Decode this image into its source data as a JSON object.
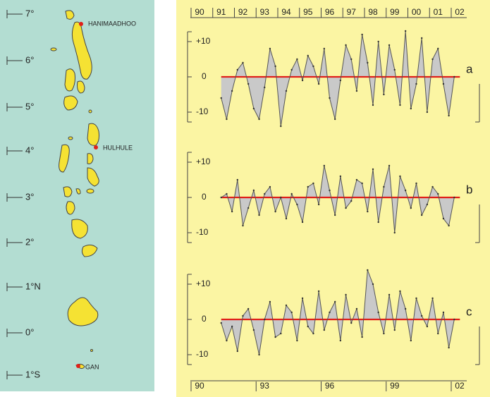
{
  "map": {
    "latitudes": [
      "7°",
      "6°",
      "5°",
      "4°",
      "3°",
      "2°",
      "1°N",
      "0°",
      "1°S"
    ],
    "stations": [
      "HANIMAADHOO",
      "HULHULE",
      "GAN"
    ]
  },
  "chart_data": [
    {
      "type": "line",
      "label": "a",
      "color": "#555555",
      "zero_color": "#e0201a",
      "fill": "#c9c9c9",
      "xlim": [
        1990,
        2002
      ],
      "ylim": [
        -14,
        14
      ],
      "yticks": [
        {
          "value": 10,
          "label": "+10"
        },
        0,
        -10
      ],
      "xticks": [
        {
          "value": 1990,
          "label": "90"
        },
        {
          "value": 1991,
          "label": "91"
        },
        {
          "value": 1992,
          "label": "92"
        },
        {
          "value": 1993,
          "label": "93"
        },
        {
          "value": 1994,
          "label": "94"
        },
        {
          "value": 1995,
          "label": "95"
        },
        {
          "value": 1996,
          "label": "96"
        },
        {
          "value": 1997,
          "label": "97"
        },
        {
          "value": 1998,
          "label": "98"
        },
        {
          "value": 1999,
          "label": "99"
        },
        {
          "value": 2000,
          "label": "00"
        },
        {
          "value": 2001,
          "label": "01"
        },
        {
          "value": 2002,
          "label": "02"
        }
      ],
      "x": [
        1991.0,
        1991.25,
        1991.5,
        1991.75,
        1992.0,
        1992.25,
        1992.5,
        1992.75,
        1993.0,
        1993.25,
        1993.5,
        1993.75,
        1994.0,
        1994.25,
        1994.5,
        1994.75,
        1995.0,
        1995.25,
        1995.5,
        1995.75,
        1996.0,
        1996.25,
        1996.5,
        1996.75,
        1997.0,
        1997.25,
        1997.5,
        1997.75,
        1998.0,
        1998.25,
        1998.5,
        1998.75,
        1999.0,
        1999.25,
        1999.5,
        1999.75,
        2000.0,
        2000.25,
        2000.5,
        2000.75,
        2001.0,
        2001.25,
        2001.5,
        2001.75
      ],
      "values": [
        -6,
        -12,
        -4,
        2,
        4,
        -2,
        -9,
        -12,
        -3,
        8,
        3,
        -14,
        -4,
        2,
        5,
        -1,
        6,
        3,
        -2,
        8,
        -6,
        -12,
        -1,
        9,
        5,
        -4,
        12,
        4,
        -8,
        10,
        -5,
        9,
        2,
        -8,
        13,
        -9,
        -2,
        11,
        -10,
        5,
        8,
        -2,
        -11,
        0
      ]
    },
    {
      "type": "line",
      "label": "b",
      "color": "#555555",
      "zero_color": "#e0201a",
      "fill": "#c9c9c9",
      "xlim": [
        1990,
        2002
      ],
      "ylim": [
        -14,
        14
      ],
      "yticks": [
        {
          "value": 10,
          "label": "+10"
        },
        0,
        -10
      ],
      "x": [
        1991.0,
        1991.25,
        1991.5,
        1991.75,
        1992.0,
        1992.25,
        1992.5,
        1992.75,
        1993.0,
        1993.25,
        1993.5,
        1993.75,
        1994.0,
        1994.25,
        1994.5,
        1994.75,
        1995.0,
        1995.25,
        1995.5,
        1995.75,
        1996.0,
        1996.25,
        1996.5,
        1996.75,
        1997.0,
        1997.25,
        1997.5,
        1997.75,
        1998.0,
        1998.25,
        1998.5,
        1998.75,
        1999.0,
        1999.25,
        1999.5,
        1999.75,
        2000.0,
        2000.25,
        2000.5,
        2000.75,
        2001.0,
        2001.25,
        2001.5,
        2001.75
      ],
      "values": [
        0,
        1,
        -4,
        5,
        -8,
        -3,
        2,
        -5,
        1,
        3,
        -4,
        0,
        -6,
        1,
        -2,
        -7,
        3,
        4,
        -2,
        9,
        2,
        -5,
        6,
        -3,
        -1,
        5,
        4,
        -4,
        8,
        -7,
        3,
        9,
        -10,
        6,
        2,
        -3,
        4,
        -5,
        -2,
        3,
        1,
        -6,
        -8,
        0
      ]
    },
    {
      "type": "line",
      "label": "c",
      "color": "#555555",
      "zero_color": "#e0201a",
      "fill": "#c9c9c9",
      "xlim": [
        1990,
        2002
      ],
      "ylim": [
        -14,
        14
      ],
      "yticks": [
        {
          "value": 10,
          "label": "+10"
        },
        0,
        -10
      ],
      "xticks": [
        {
          "value": 1990,
          "label": "90"
        },
        {
          "value": 1993,
          "label": "93"
        },
        {
          "value": 1996,
          "label": "96"
        },
        {
          "value": 1999,
          "label": "99"
        },
        {
          "value": 2002,
          "label": "02"
        }
      ],
      "x": [
        1991.0,
        1991.25,
        1991.5,
        1991.75,
        1992.0,
        1992.25,
        1992.5,
        1992.75,
        1993.0,
        1993.25,
        1993.5,
        1993.75,
        1994.0,
        1994.25,
        1994.5,
        1994.75,
        1995.0,
        1995.25,
        1995.5,
        1995.75,
        1996.0,
        1996.25,
        1996.5,
        1996.75,
        1997.0,
        1997.25,
        1997.5,
        1997.75,
        1998.0,
        1998.25,
        1998.5,
        1998.75,
        1999.0,
        1999.25,
        1999.5,
        1999.75,
        2000.0,
        2000.25,
        2000.5,
        2000.75,
        2001.0,
        2001.25,
        2001.5,
        2001.75
      ],
      "values": [
        -1,
        -6,
        -2,
        -9,
        1,
        3,
        -3,
        -10,
        0,
        5,
        -5,
        -4,
        4,
        2,
        -6,
        6,
        -2,
        -4,
        8,
        -3,
        2,
        5,
        -6,
        7,
        -1,
        3,
        -5,
        14,
        10,
        2,
        -4,
        7,
        -3,
        8,
        3,
        -6,
        6,
        1,
        -2,
        6,
        -4,
        2,
        -8,
        0
      ]
    }
  ]
}
